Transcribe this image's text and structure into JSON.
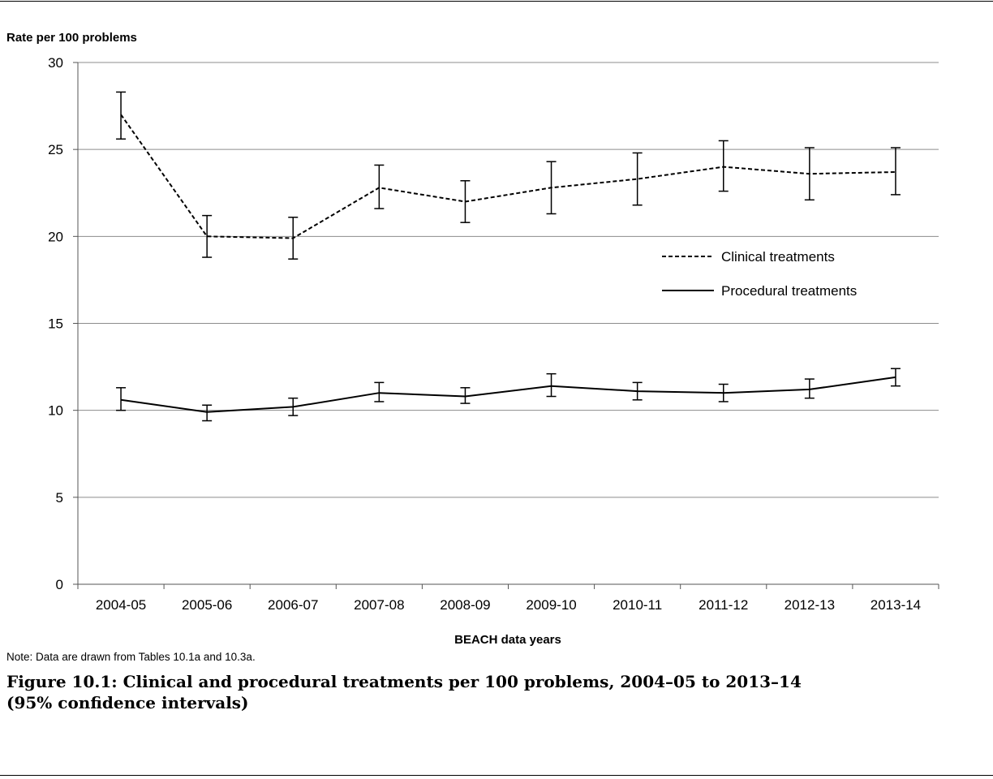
{
  "chart_data": {
    "type": "line",
    "ylabel": "Rate per 100 problems",
    "xlabel": "BEACH data years",
    "ylim": [
      0,
      30
    ],
    "yticks": [
      0,
      5,
      10,
      15,
      20,
      25,
      30
    ],
    "grid": "horizontal",
    "legend_position": "right",
    "categories": [
      "2004-05",
      "2005-06",
      "2006-07",
      "2007-08",
      "2008-09",
      "2009-10",
      "2010-11",
      "2011-12",
      "2012-13",
      "2013-14"
    ],
    "series": [
      {
        "name": "Clinical treatments",
        "style": "dashed",
        "color": "#000000",
        "values": [
          27.0,
          20.0,
          19.9,
          22.8,
          22.0,
          22.8,
          23.3,
          24.0,
          23.6,
          23.7
        ],
        "ci_low": [
          25.6,
          18.8,
          18.7,
          21.6,
          20.8,
          21.3,
          21.8,
          22.6,
          22.1,
          22.4
        ],
        "ci_high": [
          28.3,
          21.2,
          21.1,
          24.1,
          23.2,
          24.3,
          24.8,
          25.5,
          25.1,
          25.1
        ]
      },
      {
        "name": "Procedural treatments",
        "style": "solid",
        "color": "#000000",
        "values": [
          10.6,
          9.9,
          10.2,
          11.0,
          10.8,
          11.4,
          11.1,
          11.0,
          11.2,
          11.9
        ],
        "ci_low": [
          10.0,
          9.4,
          9.7,
          10.5,
          10.4,
          10.8,
          10.6,
          10.5,
          10.7,
          11.4
        ],
        "ci_high": [
          11.3,
          10.3,
          10.7,
          11.6,
          11.3,
          12.1,
          11.6,
          11.5,
          11.8,
          12.4
        ]
      }
    ]
  },
  "note": "Note: Data are drawn from Tables 10.1a and 10.3a.",
  "caption": {
    "line1": "Figure 10.1: Clinical and procedural treatments per 100 problems, 2004–05 to 2013–14",
    "line2": "(95% confidence intervals)"
  }
}
